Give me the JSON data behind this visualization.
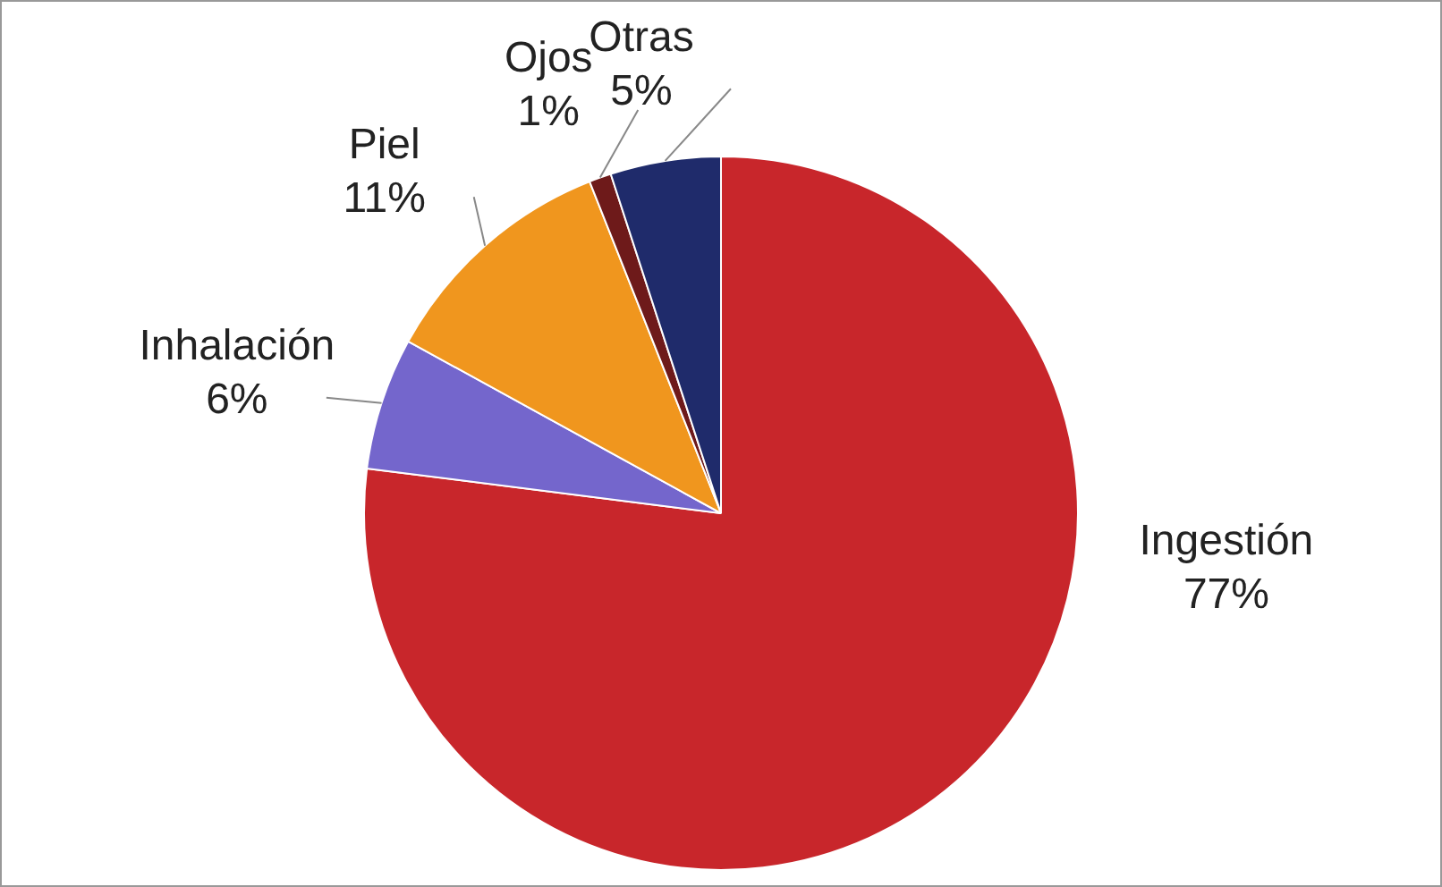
{
  "chart_data": {
    "type": "pie",
    "categories": [
      "Ingestión",
      "Inhalación",
      "Piel",
      "Ojos",
      "Otras"
    ],
    "values": [
      77,
      6,
      11,
      1,
      5
    ],
    "value_labels": [
      "77%",
      "6%",
      "11%",
      "1%",
      "5%"
    ],
    "colors": [
      "#c8262b",
      "#7466cc",
      "#f0961e",
      "#6e1a1a",
      "#1f2b6b"
    ],
    "legend": false
  }
}
